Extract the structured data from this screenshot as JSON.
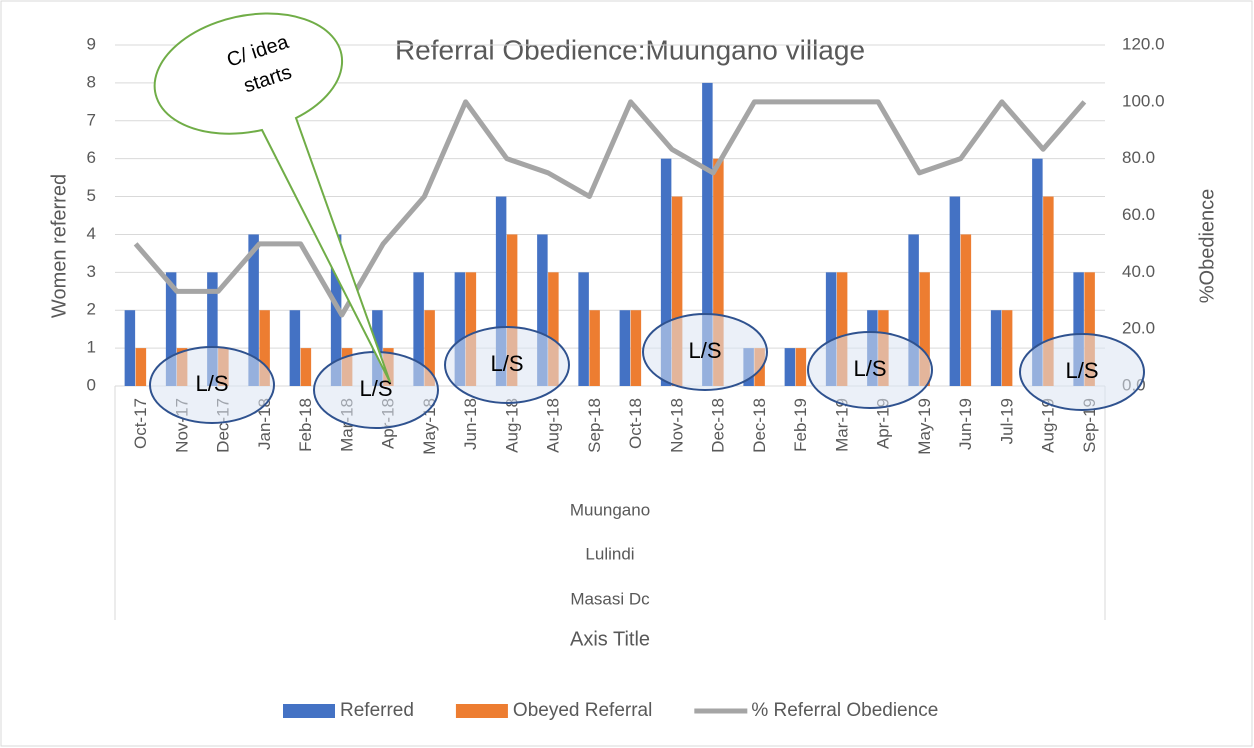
{
  "chart_data": {
    "type": "bar_line",
    "title": "Referral Obedience:Muungano village",
    "y_axis_label": "Women referred",
    "y2_axis_label": "%Obedience",
    "x_axis_label": "Axis Title",
    "group_labels": [
      "Muungano",
      "Lulindi",
      "Masasi Dc"
    ],
    "categories": [
      "Oct-17",
      "Nov-17",
      "Dec-17",
      "Jan-18",
      "Feb-18",
      "Mar-18",
      "Apr-18",
      "May-18",
      "Jun-18",
      "Aug-18",
      "Aug-18",
      "Sep-18",
      "Oct-18",
      "Nov-18",
      "Dec-18",
      "Dec-18",
      "Feb-19",
      "Mar-19",
      "Apr-19",
      "May-19",
      "Jun-19",
      "Jul-19",
      "Aug-19",
      "Sep-19"
    ],
    "series": [
      {
        "name": "Referred",
        "type": "bar",
        "color": "#4472c4",
        "values": [
          2,
          3,
          3,
          4,
          2,
          4,
          2,
          3,
          3,
          5,
          4,
          3,
          2,
          6,
          8,
          1,
          1,
          3,
          2,
          4,
          5,
          2,
          6,
          3
        ]
      },
      {
        "name": "Obeyed Referral",
        "type": "bar",
        "color": "#ed7d31",
        "values": [
          1,
          1,
          1,
          2,
          1,
          1,
          1,
          2,
          3,
          4,
          3,
          2,
          2,
          5,
          6,
          1,
          1,
          3,
          2,
          3,
          4,
          2,
          5,
          3
        ]
      },
      {
        "name": "% Referral Obedience",
        "type": "line",
        "axis": "y2",
        "color": "#a5a5a5",
        "values": [
          50,
          33.3,
          33.3,
          50,
          50,
          25,
          50,
          66.7,
          100,
          80,
          75,
          66.7,
          100,
          83.3,
          75,
          100,
          100,
          100,
          100,
          75,
          80,
          100,
          83.3,
          100
        ]
      }
    ],
    "ylim": [
      0,
      9
    ],
    "yticks": [
      0,
      1,
      2,
      3,
      4,
      5,
      6,
      7,
      8,
      9
    ],
    "y2lim": [
      0,
      120
    ],
    "y2ticks": [
      {
        "value": 0,
        "label": "0.0"
      },
      {
        "value": 20,
        "label": "20.0"
      },
      {
        "value": 40,
        "label": "40.0"
      },
      {
        "value": 60,
        "label": "60.0"
      },
      {
        "value": 80,
        "label": "80.0"
      },
      {
        "value": 100,
        "label": "100.0"
      },
      {
        "value": 120,
        "label": "120.0"
      }
    ],
    "grid": true,
    "legend": "bottom",
    "callout": [
      "C/ idea",
      "starts"
    ],
    "annotations": [
      "L/S",
      "L/S",
      "L/S",
      "L/S",
      "L/S",
      "L/S"
    ]
  }
}
